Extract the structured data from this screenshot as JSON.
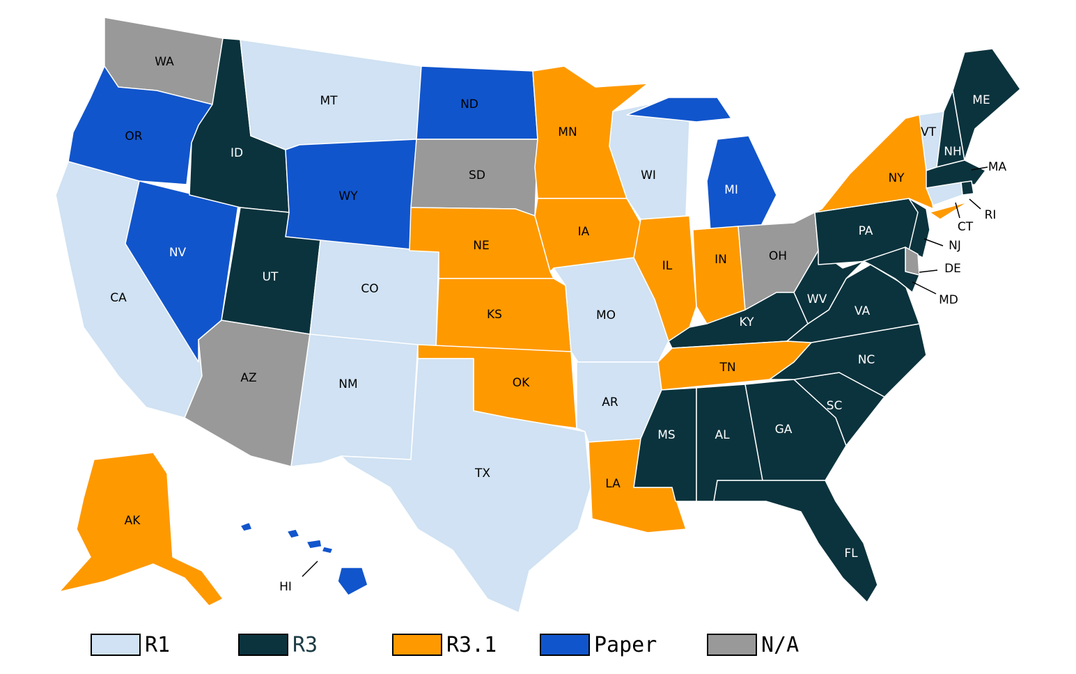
{
  "colors": {
    "R1": "#d0e2f3",
    "R3": "#0b333d",
    "R3.1": "#ff9900",
    "Paper": "#1155cc",
    "N/A": "#999999"
  },
  "legend": [
    {
      "key": "R1",
      "label": "R1",
      "label_color": "#000000"
    },
    {
      "key": "R3",
      "label": "R3",
      "label_color": "#1c3b45"
    },
    {
      "key": "R3.1",
      "label": "R3.1",
      "label_color": "#000000"
    },
    {
      "key": "Paper",
      "label": "Paper",
      "label_color": "#000000"
    },
    {
      "key": "N/A",
      "label": "N/A",
      "label_color": "#000000"
    }
  ],
  "states": [
    {
      "abbr": "WA",
      "category": "N/A"
    },
    {
      "abbr": "OR",
      "category": "Paper"
    },
    {
      "abbr": "CA",
      "category": "R1"
    },
    {
      "abbr": "NV",
      "category": "Paper"
    },
    {
      "abbr": "ID",
      "category": "R3"
    },
    {
      "abbr": "MT",
      "category": "R1"
    },
    {
      "abbr": "WY",
      "category": "Paper"
    },
    {
      "abbr": "UT",
      "category": "R3"
    },
    {
      "abbr": "AZ",
      "category": "N/A"
    },
    {
      "abbr": "CO",
      "category": "R1"
    },
    {
      "abbr": "NM",
      "category": "R1"
    },
    {
      "abbr": "ND",
      "category": "Paper"
    },
    {
      "abbr": "SD",
      "category": "N/A"
    },
    {
      "abbr": "NE",
      "category": "R3.1"
    },
    {
      "abbr": "KS",
      "category": "R3.1"
    },
    {
      "abbr": "OK",
      "category": "R3.1"
    },
    {
      "abbr": "TX",
      "category": "R1"
    },
    {
      "abbr": "MN",
      "category": "R3.1"
    },
    {
      "abbr": "IA",
      "category": "R3.1"
    },
    {
      "abbr": "MO",
      "category": "R1"
    },
    {
      "abbr": "AR",
      "category": "R1"
    },
    {
      "abbr": "LA",
      "category": "R3.1"
    },
    {
      "abbr": "WI",
      "category": "R1"
    },
    {
      "abbr": "IL",
      "category": "R3.1"
    },
    {
      "abbr": "MI",
      "category": "Paper"
    },
    {
      "abbr": "IN",
      "category": "R3.1"
    },
    {
      "abbr": "OH",
      "category": "N/A"
    },
    {
      "abbr": "KY",
      "category": "R3"
    },
    {
      "abbr": "TN",
      "category": "R3.1"
    },
    {
      "abbr": "MS",
      "category": "R3"
    },
    {
      "abbr": "AL",
      "category": "R3"
    },
    {
      "abbr": "GA",
      "category": "R3"
    },
    {
      "abbr": "FL",
      "category": "R3"
    },
    {
      "abbr": "SC",
      "category": "R3"
    },
    {
      "abbr": "NC",
      "category": "R3"
    },
    {
      "abbr": "VA",
      "category": "R3"
    },
    {
      "abbr": "WV",
      "category": "R3"
    },
    {
      "abbr": "PA",
      "category": "R3"
    },
    {
      "abbr": "NY",
      "category": "R3.1"
    },
    {
      "abbr": "VT",
      "category": "R1"
    },
    {
      "abbr": "NH",
      "category": "R3"
    },
    {
      "abbr": "ME",
      "category": "R3"
    },
    {
      "abbr": "MA",
      "category": "R3"
    },
    {
      "abbr": "RI",
      "category": "R3"
    },
    {
      "abbr": "CT",
      "category": "R1"
    },
    {
      "abbr": "NJ",
      "category": "R3"
    },
    {
      "abbr": "DE",
      "category": "N/A"
    },
    {
      "abbr": "MD",
      "category": "R3"
    },
    {
      "abbr": "AK",
      "category": "R3.1"
    },
    {
      "abbr": "HI",
      "category": "Paper"
    }
  ]
}
